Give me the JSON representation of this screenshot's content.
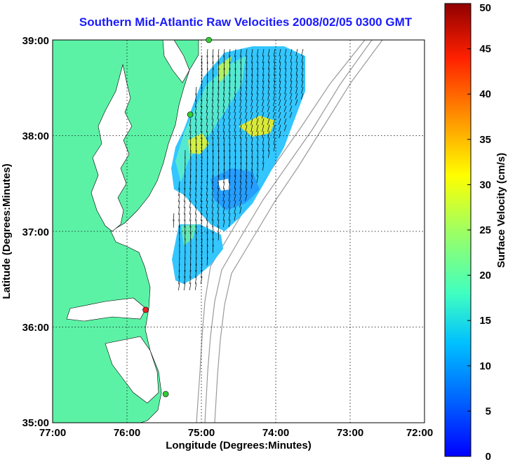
{
  "title": "Southern Mid-Atlantic Raw Velocities 2008/02/05 0300 GMT",
  "chart_data": {
    "type": "heatmap",
    "xlabel": "Longitude (Degrees:Minutes)",
    "ylabel": "Latitude (Degrees:Minutes)",
    "x_ticks": [
      "77:00",
      "76:00",
      "75:00",
      "74:00",
      "73:00",
      "72:00"
    ],
    "y_ticks": [
      "39:00",
      "38:00",
      "37:00",
      "36:00",
      "35:00"
    ],
    "x_values": [
      -77,
      -76,
      -75,
      -74,
      -73,
      -72
    ],
    "y_values": [
      39,
      38,
      37,
      36,
      35
    ],
    "xlim": [
      -77,
      -72
    ],
    "ylim": [
      35,
      39
    ],
    "grid": true,
    "colorbar": {
      "label": "Surface Velocity (cm/s)",
      "range": [
        0,
        50
      ],
      "ticks": [
        "0",
        "5",
        "10",
        "15",
        "20",
        "25",
        "30",
        "35",
        "40",
        "45",
        "50"
      ],
      "colormap": "jet"
    },
    "colors": {
      "land": "#5cf2a6",
      "shelf_contours": "#9a9a9a",
      "title": "#1a1aff"
    },
    "stations": [
      {
        "lon": -74.9,
        "lat": 39.0,
        "color": "#33cc33"
      },
      {
        "lon": -75.15,
        "lat": 38.22,
        "color": "#33cc33"
      },
      {
        "lon": -75.75,
        "lat": 36.18,
        "color": "#ee2222"
      },
      {
        "lon": -75.48,
        "lat": 35.3,
        "color": "#33cc33"
      }
    ]
  }
}
